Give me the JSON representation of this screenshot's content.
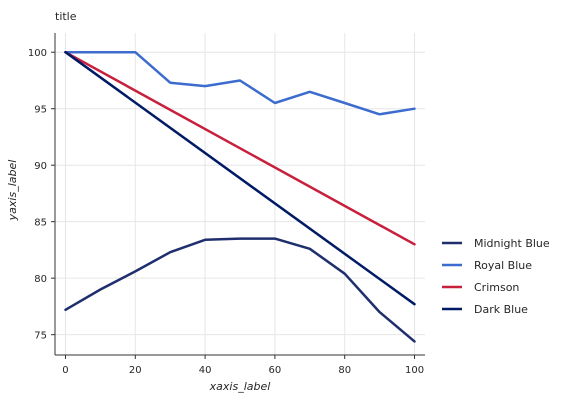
{
  "chart_data": {
    "type": "line",
    "title": "title",
    "xlabel": "xaxis_label",
    "ylabel": "yaxis_label",
    "xlim": [
      -3,
      103
    ],
    "ylim": [
      73.2,
      101.7
    ],
    "xticks": [
      0,
      20,
      40,
      60,
      80,
      100
    ],
    "yticks": [
      75,
      80,
      85,
      90,
      95,
      100
    ],
    "grid": true,
    "legend_position": "right",
    "series": [
      {
        "name": "Midnight Blue",
        "color": "#1f2f6e",
        "x": [
          0,
          10,
          20,
          30,
          40,
          50,
          60,
          70,
          80,
          90,
          100
        ],
        "y": [
          77.2,
          79.0,
          80.6,
          82.3,
          83.4,
          83.5,
          83.5,
          82.6,
          80.4,
          77.0,
          74.4
        ]
      },
      {
        "name": "Royal Blue",
        "color": "#3d6ccf",
        "x": [
          0,
          10,
          20,
          30,
          40,
          50,
          60,
          70,
          80,
          90,
          100
        ],
        "y": [
          100,
          100,
          100,
          97.3,
          97.0,
          97.5,
          95.5,
          96.5,
          95.5,
          94.5,
          95.0
        ]
      },
      {
        "name": "Crimson",
        "color": "#c8203c",
        "x": [
          0,
          100
        ],
        "y": [
          100,
          83.0
        ]
      },
      {
        "name": "Dark Blue",
        "color": "#001a66",
        "x": [
          0,
          100
        ],
        "y": [
          100,
          77.7
        ]
      }
    ]
  }
}
